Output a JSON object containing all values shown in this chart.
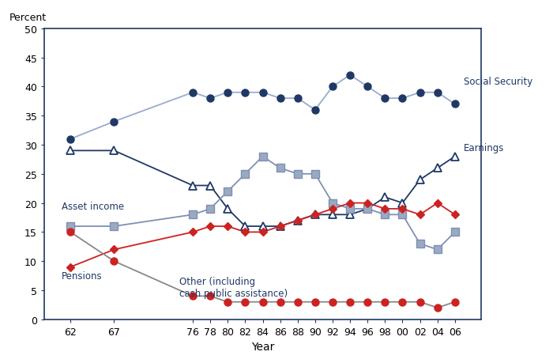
{
  "years": [
    62,
    67,
    76,
    78,
    80,
    82,
    84,
    86,
    88,
    90,
    92,
    94,
    96,
    98,
    100,
    102,
    104,
    106
  ],
  "year_labels": [
    "62",
    "67",
    "76",
    "78",
    "80",
    "82",
    "84",
    "86",
    "88",
    "90",
    "92",
    "94",
    "96",
    "98",
    "00",
    "02",
    "04",
    "06"
  ],
  "social_security": [
    31,
    34,
    39,
    38,
    39,
    39,
    39,
    38,
    38,
    36,
    40,
    42,
    40,
    38,
    38,
    39,
    39,
    37
  ],
  "earnings": [
    29,
    29,
    23,
    23,
    19,
    16,
    16,
    16,
    17,
    18,
    18,
    18,
    19,
    21,
    20,
    24,
    26,
    28
  ],
  "asset_income": [
    16,
    16,
    18,
    19,
    22,
    25,
    28,
    26,
    25,
    25,
    20,
    19,
    19,
    18,
    18,
    13,
    12,
    15
  ],
  "pensions": [
    9,
    12,
    15,
    16,
    16,
    15,
    15,
    16,
    17,
    18,
    19,
    20,
    20,
    19,
    19,
    18,
    20,
    18
  ],
  "other": [
    15,
    10,
    4,
    4,
    3,
    3,
    3,
    3,
    3,
    3,
    3,
    3,
    3,
    3,
    3,
    3,
    2,
    3
  ],
  "dark_blue": "#1f3864",
  "light_blue_line": "#9aabcc",
  "gray_blue": "#7f8fb5",
  "gray_blue_sq": "#9aaac0",
  "red_color": "#cc2222",
  "gray_line": "#888888",
  "bg_color": "#ffffff",
  "xlabel": "Year",
  "ylabel": "Percent",
  "ylim": [
    0,
    50
  ],
  "yticks": [
    0,
    5,
    10,
    15,
    20,
    25,
    30,
    35,
    40,
    45,
    50
  ],
  "label_social_security": "Social Security",
  "label_earnings": "Earnings",
  "label_asset_income": "Asset income",
  "label_pensions": "Pensions",
  "label_other": "Other (including\ncash public assistance)"
}
